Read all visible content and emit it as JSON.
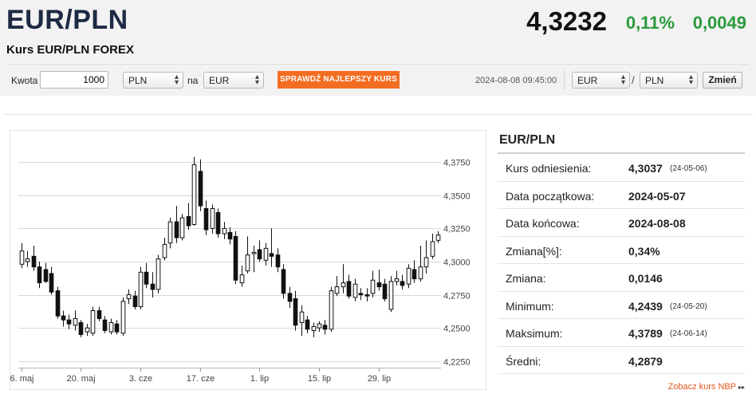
{
  "header": {
    "pair": "EUR/PLN",
    "subtitle": "Kurs EUR/PLN FOREX",
    "price": "4,3232",
    "change_pct": "0,11%",
    "change_abs": "0,0049"
  },
  "form": {
    "amount_label": "Kwota",
    "amount_value": "1000",
    "from_currency": "PLN",
    "to_label": "na",
    "to_currency": "EUR",
    "best_rate_button": "SPRAWDŹ NAJLEPSZY KURS",
    "timestamp": "2024-08-08 09:45:00",
    "base_currency": "EUR",
    "slash": "/",
    "quote_currency": "PLN",
    "change_button": "Zmień"
  },
  "info": {
    "title": "EUR/PLN",
    "rows": [
      {
        "label": "Kurs odniesienia:",
        "value": "4,3037",
        "date": "(24-05-06)"
      },
      {
        "label": "Data początkowa:",
        "value": "2024-05-07",
        "date": ""
      },
      {
        "label": "Data końcowa:",
        "value": "2024-08-08",
        "date": ""
      },
      {
        "label": "Zmiana[%]:",
        "value": "0,34%",
        "date": ""
      },
      {
        "label": "Zmiana:",
        "value": "0,0146",
        "date": ""
      },
      {
        "label": "Minimum:",
        "value": "4,2439",
        "date": "(24-05-20)"
      },
      {
        "label": "Maksimum:",
        "value": "4,3789",
        "date": "(24-06-14)"
      },
      {
        "label": "Średni:",
        "value": "4,2879",
        "date": ""
      }
    ],
    "nbp_link": "Zobacz kurs NBP",
    "nbp_arrow": "▸▸"
  },
  "chart_data": {
    "type": "candlestick",
    "ylim": [
      4.22,
      4.395
    ],
    "y_ticks": [
      4.225,
      4.25,
      4.275,
      4.3,
      4.325,
      4.35,
      4.375
    ],
    "y_tick_labels": [
      "4,2250",
      "4,2500",
      "4,2750",
      "4,3000",
      "4,3250",
      "4,3500",
      "4,3750"
    ],
    "x_ticks": [
      {
        "index": 0,
        "label": "6. maj"
      },
      {
        "index": 10,
        "label": "20. maj"
      },
      {
        "index": 20,
        "label": "3. cze"
      },
      {
        "index": 30,
        "label": "17. cze"
      },
      {
        "index": 40,
        "label": "1. lip"
      },
      {
        "index": 50,
        "label": "15. lip"
      },
      {
        "index": 60,
        "label": "29. lip"
      }
    ],
    "candles": [
      {
        "o": 4.298,
        "h": 4.314,
        "l": 4.295,
        "c": 4.308
      },
      {
        "o": 4.3,
        "h": 4.308,
        "l": 4.296,
        "c": 4.302
      },
      {
        "o": 4.304,
        "h": 4.312,
        "l": 4.293,
        "c": 4.296
      },
      {
        "o": 4.296,
        "h": 4.3,
        "l": 4.28,
        "c": 4.284
      },
      {
        "o": 4.294,
        "h": 4.299,
        "l": 4.284,
        "c": 4.285
      },
      {
        "o": 4.291,
        "h": 4.296,
        "l": 4.275,
        "c": 4.277
      },
      {
        "o": 4.278,
        "h": 4.281,
        "l": 4.257,
        "c": 4.259
      },
      {
        "o": 4.259,
        "h": 4.263,
        "l": 4.251,
        "c": 4.256
      },
      {
        "o": 4.256,
        "h": 4.26,
        "l": 4.249,
        "c": 4.253
      },
      {
        "o": 4.252,
        "h": 4.263,
        "l": 4.248,
        "c": 4.257
      },
      {
        "o": 4.254,
        "h": 4.256,
        "l": 4.243,
        "c": 4.245
      },
      {
        "o": 4.247,
        "h": 4.253,
        "l": 4.244,
        "c": 4.25
      },
      {
        "o": 4.246,
        "h": 4.266,
        "l": 4.244,
        "c": 4.263
      },
      {
        "o": 4.263,
        "h": 4.266,
        "l": 4.255,
        "c": 4.257
      },
      {
        "o": 4.256,
        "h": 4.259,
        "l": 4.246,
        "c": 4.248
      },
      {
        "o": 4.247,
        "h": 4.257,
        "l": 4.245,
        "c": 4.254
      },
      {
        "o": 4.253,
        "h": 4.256,
        "l": 4.245,
        "c": 4.247
      },
      {
        "o": 4.246,
        "h": 4.273,
        "l": 4.244,
        "c": 4.27
      },
      {
        "o": 4.272,
        "h": 4.279,
        "l": 4.268,
        "c": 4.275
      },
      {
        "o": 4.274,
        "h": 4.278,
        "l": 4.264,
        "c": 4.266
      },
      {
        "o": 4.266,
        "h": 4.296,
        "l": 4.264,
        "c": 4.292
      },
      {
        "o": 4.292,
        "h": 4.299,
        "l": 4.28,
        "c": 4.283
      },
      {
        "o": 4.283,
        "h": 4.292,
        "l": 4.273,
        "c": 4.279
      },
      {
        "o": 4.279,
        "h": 4.305,
        "l": 4.276,
        "c": 4.302
      },
      {
        "o": 4.303,
        "h": 4.318,
        "l": 4.301,
        "c": 4.313
      },
      {
        "o": 4.314,
        "h": 4.333,
        "l": 4.31,
        "c": 4.33
      },
      {
        "o": 4.33,
        "h": 4.342,
        "l": 4.314,
        "c": 4.318
      },
      {
        "o": 4.318,
        "h": 4.336,
        "l": 4.316,
        "c": 4.333
      },
      {
        "o": 4.334,
        "h": 4.344,
        "l": 4.324,
        "c": 4.327
      },
      {
        "o": 4.328,
        "h": 4.379,
        "l": 4.327,
        "c": 4.373
      },
      {
        "o": 4.368,
        "h": 4.377,
        "l": 4.338,
        "c": 4.342
      },
      {
        "o": 4.34,
        "h": 4.346,
        "l": 4.32,
        "c": 4.324
      },
      {
        "o": 4.325,
        "h": 4.343,
        "l": 4.321,
        "c": 4.34
      },
      {
        "o": 4.337,
        "h": 4.34,
        "l": 4.318,
        "c": 4.321
      },
      {
        "o": 4.321,
        "h": 4.33,
        "l": 4.317,
        "c": 4.325
      },
      {
        "o": 4.322,
        "h": 4.326,
        "l": 4.313,
        "c": 4.317
      },
      {
        "o": 4.319,
        "h": 4.323,
        "l": 4.283,
        "c": 4.286
      },
      {
        "o": 4.284,
        "h": 4.297,
        "l": 4.281,
        "c": 4.29
      },
      {
        "o": 4.293,
        "h": 4.319,
        "l": 4.291,
        "c": 4.305
      },
      {
        "o": 4.306,
        "h": 4.312,
        "l": 4.292,
        "c": 4.307
      },
      {
        "o": 4.309,
        "h": 4.316,
        "l": 4.3,
        "c": 4.302
      },
      {
        "o": 4.301,
        "h": 4.314,
        "l": 4.297,
        "c": 4.31
      },
      {
        "o": 4.306,
        "h": 4.325,
        "l": 4.296,
        "c": 4.304
      },
      {
        "o": 4.305,
        "h": 4.31,
        "l": 4.292,
        "c": 4.296
      },
      {
        "o": 4.294,
        "h": 4.298,
        "l": 4.272,
        "c": 4.276
      },
      {
        "o": 4.276,
        "h": 4.281,
        "l": 4.265,
        "c": 4.27
      },
      {
        "o": 4.272,
        "h": 4.278,
        "l": 4.248,
        "c": 4.252
      },
      {
        "o": 4.254,
        "h": 4.267,
        "l": 4.244,
        "c": 4.262
      },
      {
        "o": 4.256,
        "h": 4.259,
        "l": 4.246,
        "c": 4.249
      },
      {
        "o": 4.248,
        "h": 4.254,
        "l": 4.243,
        "c": 4.251
      },
      {
        "o": 4.25,
        "h": 4.255,
        "l": 4.247,
        "c": 4.253
      },
      {
        "o": 4.252,
        "h": 4.256,
        "l": 4.245,
        "c": 4.249
      },
      {
        "o": 4.249,
        "h": 4.281,
        "l": 4.247,
        "c": 4.278
      },
      {
        "o": 4.276,
        "h": 4.289,
        "l": 4.274,
        "c": 4.281
      },
      {
        "o": 4.281,
        "h": 4.298,
        "l": 4.276,
        "c": 4.284
      },
      {
        "o": 4.285,
        "h": 4.29,
        "l": 4.272,
        "c": 4.274
      },
      {
        "o": 4.273,
        "h": 4.287,
        "l": 4.27,
        "c": 4.283
      },
      {
        "o": 4.276,
        "h": 4.28,
        "l": 4.271,
        "c": 4.275
      },
      {
        "o": 4.275,
        "h": 4.28,
        "l": 4.27,
        "c": 4.274
      },
      {
        "o": 4.276,
        "h": 4.293,
        "l": 4.273,
        "c": 4.286
      },
      {
        "o": 4.284,
        "h": 4.294,
        "l": 4.278,
        "c": 4.281
      },
      {
        "o": 4.283,
        "h": 4.287,
        "l": 4.27,
        "c": 4.272
      },
      {
        "o": 4.264,
        "h": 4.289,
        "l": 4.262,
        "c": 4.285
      },
      {
        "o": 4.285,
        "h": 4.293,
        "l": 4.282,
        "c": 4.287
      },
      {
        "o": 4.285,
        "h": 4.29,
        "l": 4.279,
        "c": 4.282
      },
      {
        "o": 4.283,
        "h": 4.298,
        "l": 4.28,
        "c": 4.295
      },
      {
        "o": 4.294,
        "h": 4.301,
        "l": 4.284,
        "c": 4.287
      },
      {
        "o": 4.287,
        "h": 4.312,
        "l": 4.285,
        "c": 4.296
      },
      {
        "o": 4.296,
        "h": 4.316,
        "l": 4.291,
        "c": 4.303
      },
      {
        "o": 4.304,
        "h": 4.321,
        "l": 4.302,
        "c": 4.315
      },
      {
        "o": 4.316,
        "h": 4.323,
        "l": 4.314,
        "c": 4.32
      }
    ]
  }
}
